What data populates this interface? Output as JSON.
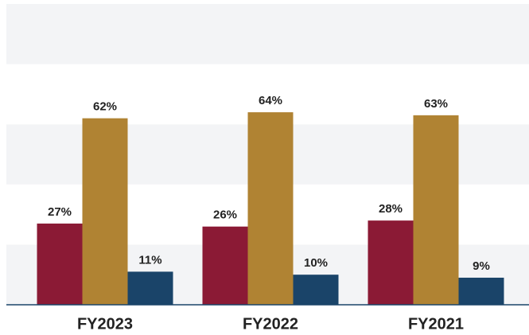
{
  "chart_data": {
    "type": "bar",
    "categories": [
      "FY2023",
      "FY2022",
      "FY2021"
    ],
    "series": [
      {
        "color": "#8b1a35",
        "values": [
          27,
          26,
          28
        ],
        "value_labels": [
          "27%",
          "26%",
          "28%"
        ]
      },
      {
        "color": "#b08333",
        "values": [
          62,
          64,
          63
        ],
        "value_labels": [
          "62%",
          "64%",
          "63%"
        ]
      },
      {
        "color": "#1a4469",
        "values": [
          11,
          10,
          9
        ],
        "value_labels": [
          "11%",
          "10%",
          "9%"
        ]
      }
    ],
    "ylim": [
      0,
      100
    ],
    "yticks": [
      0,
      20,
      40,
      60,
      80,
      100
    ],
    "grid": true
  }
}
